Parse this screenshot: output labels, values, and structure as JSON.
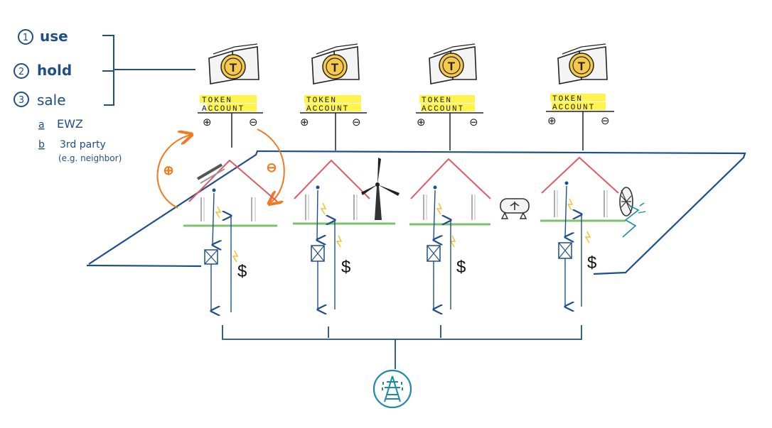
{
  "options": [
    {
      "num": "1",
      "label": "use"
    },
    {
      "num": "2",
      "label": "hold"
    },
    {
      "num": "3",
      "label": "sale"
    }
  ],
  "sale_options": [
    {
      "letter": "a",
      "label": "EWZ"
    },
    {
      "letter": "b",
      "label": "3rd party",
      "note": "(e.g. neighbor)"
    }
  ],
  "token_glyph": "T",
  "token_account": {
    "line1": "TOKEN",
    "line2": "ACCOUNT",
    "plus": "⊕",
    "minus": "⊖"
  },
  "flow_signs": {
    "plus": "⊕",
    "minus": "⊖"
  },
  "currency_symbol": "$",
  "houses": [
    {
      "id": "house-1",
      "source": "solar"
    },
    {
      "id": "house-2",
      "source": "wind"
    },
    {
      "id": "house-3",
      "source": "biogas"
    },
    {
      "id": "house-4",
      "source": "hydro"
    }
  ],
  "colors": {
    "ink": "#1f4f8a",
    "roof": "#e05a64",
    "grass": "#7cc26a",
    "highlight": "#fff34d",
    "orange": "#f07a1e",
    "teal": "#1b8aa5",
    "bolt": "#f2c230"
  }
}
